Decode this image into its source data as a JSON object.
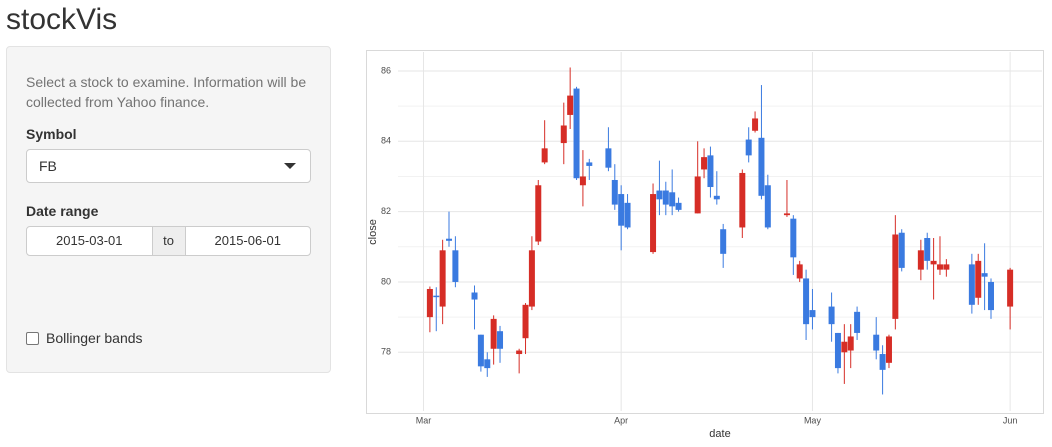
{
  "app": {
    "title": "stockVis",
    "help": "Select a stock to examine. Information will be collected from Yahoo finance.",
    "symbol_label": "Symbol",
    "symbol": "FB",
    "date_range_label": "Date range",
    "date_start": "2015-03-01",
    "date_sep": "to",
    "date_end": "2015-06-01",
    "checkbox": "Bollinger bands"
  },
  "chart_data": {
    "type": "candlestick",
    "xlabel": "date",
    "ylabel": "close",
    "x": [
      "2015-03-02",
      "2015-03-03",
      "2015-03-04",
      "2015-03-05",
      "2015-03-06",
      "2015-03-09",
      "2015-03-10",
      "2015-03-11",
      "2015-03-12",
      "2015-03-13",
      "2015-03-16",
      "2015-03-17",
      "2015-03-18",
      "2015-03-19",
      "2015-03-20",
      "2015-03-23",
      "2015-03-24",
      "2015-03-25",
      "2015-03-26",
      "2015-03-27",
      "2015-03-30",
      "2015-03-31",
      "2015-04-01",
      "2015-04-02",
      "2015-04-06",
      "2015-04-07",
      "2015-04-08",
      "2015-04-09",
      "2015-04-10",
      "2015-04-13",
      "2015-04-14",
      "2015-04-15",
      "2015-04-16",
      "2015-04-17",
      "2015-04-20",
      "2015-04-21",
      "2015-04-22",
      "2015-04-23",
      "2015-04-24",
      "2015-04-27",
      "2015-04-28",
      "2015-04-29",
      "2015-04-30",
      "2015-05-01",
      "2015-05-04",
      "2015-05-05",
      "2015-05-06",
      "2015-05-07",
      "2015-05-08",
      "2015-05-11",
      "2015-05-12",
      "2015-05-13",
      "2015-05-14",
      "2015-05-15",
      "2015-05-18",
      "2015-05-19",
      "2015-05-20",
      "2015-05-21",
      "2015-05-22",
      "2015-05-26",
      "2015-05-27",
      "2015-05-28",
      "2015-05-29",
      "2015-06-01"
    ],
    "open": [
      79.0,
      79.61,
      79.3,
      81.23,
      80.9,
      79.7,
      78.5,
      77.8,
      78.1,
      78.6,
      77.95,
      78.4,
      79.3,
      81.15,
      83.4,
      83.95,
      84.75,
      85.5,
      82.75,
      83.4,
      83.8,
      82.9,
      82.5,
      82.25,
      80.85,
      82.6,
      82.6,
      82.55,
      82.25,
      81.95,
      83.2,
      83.6,
      82.45,
      81.5,
      81.55,
      84.05,
      84.3,
      84.1,
      82.75,
      81.9,
      81.8,
      80.1,
      80.1,
      79.2,
      79.3,
      78.55,
      78.0,
      78.05,
      79.15,
      78.5,
      77.95,
      77.7,
      78.95,
      81.4,
      80.35,
      81.25,
      80.5,
      80.35,
      80.35,
      80.5,
      79.55,
      80.25,
      80.0,
      79.3
    ],
    "high": [
      79.87,
      79.85,
      81.2,
      82.0,
      81.3,
      79.9,
      78.5,
      78.0,
      79.05,
      78.75,
      78.1,
      79.4,
      81.3,
      82.9,
      84.6,
      85.1,
      86.1,
      85.55,
      83.75,
      83.5,
      84.4,
      83.35,
      82.75,
      82.5,
      82.8,
      83.45,
      82.85,
      83.2,
      82.4,
      84.0,
      83.8,
      83.85,
      83.15,
      81.65,
      83.2,
      84.4,
      84.85,
      85.6,
      83.05,
      82.9,
      81.9,
      80.6,
      80.35,
      79.8,
      79.7,
      78.55,
      78.8,
      78.8,
      79.3,
      79.0,
      78.2,
      78.5,
      81.9,
      81.5,
      81.2,
      81.4,
      81.25,
      81.3,
      80.65,
      80.8,
      80.8,
      81.1,
      80.1,
      80.4
    ],
    "low": [
      78.57,
      78.6,
      78.8,
      81.0,
      79.85,
      78.65,
      77.45,
      77.3,
      77.65,
      77.7,
      77.4,
      77.95,
      79.2,
      81.05,
      83.35,
      83.35,
      84.35,
      82.9,
      82.15,
      82.9,
      83.15,
      82.05,
      80.9,
      81.5,
      80.8,
      81.9,
      81.9,
      81.9,
      82.0,
      81.95,
      82.95,
      82.4,
      82.2,
      80.4,
      81.25,
      83.4,
      84.25,
      82.35,
      81.5,
      81.85,
      80.2,
      80.0,
      78.35,
      78.65,
      78.3,
      77.4,
      77.1,
      77.55,
      78.35,
      77.8,
      76.8,
      77.55,
      78.65,
      80.3,
      80.05,
      80.35,
      79.5,
      80.2,
      80.15,
      79.1,
      79.35,
      79.2,
      78.95,
      78.65
    ],
    "close": [
      79.8,
      79.6,
      80.9,
      81.17,
      80.0,
      79.5,
      77.6,
      77.55,
      78.95,
      78.1,
      78.05,
      79.35,
      80.9,
      82.75,
      83.8,
      84.45,
      85.3,
      82.95,
      83.0,
      83.3,
      83.25,
      82.2,
      81.6,
      81.55,
      82.5,
      82.35,
      82.2,
      82.15,
      82.05,
      83.0,
      83.55,
      82.7,
      82.35,
      80.8,
      83.1,
      83.6,
      84.65,
      82.45,
      81.55,
      81.95,
      80.7,
      80.5,
      78.8,
      79.0,
      78.8,
      77.55,
      78.3,
      78.45,
      78.55,
      78.05,
      77.5,
      78.45,
      81.35,
      80.4,
      80.9,
      80.6,
      80.6,
      80.5,
      80.5,
      79.35,
      80.6,
      80.15,
      79.2,
      80.35
    ],
    "increasing_color": "#d62d26",
    "decreasing_color": "#3a7ae0",
    "xlim": [
      "2015-02-25",
      "2015-06-06"
    ],
    "xticks": [
      {
        "value": "2015-03-01",
        "label": "Mar"
      },
      {
        "value": "2015-04-01",
        "label": "Apr"
      },
      {
        "value": "2015-05-01",
        "label": "May"
      },
      {
        "value": "2015-06-01",
        "label": "Jun"
      }
    ],
    "ylim": [
      76.33,
      86.54
    ],
    "yticks": [
      78,
      80,
      82,
      84,
      86
    ],
    "grid": true
  }
}
